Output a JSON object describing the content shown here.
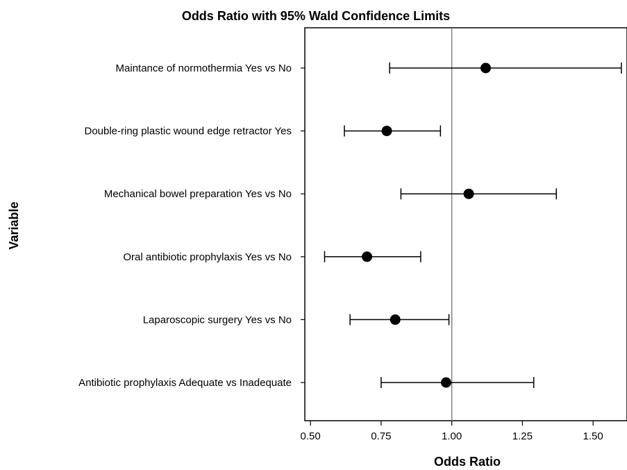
{
  "chart_data": {
    "type": "scatter",
    "title": "Odds Ratio with 95% Wald Confidence Limits",
    "xlabel": "Odds Ratio",
    "ylabel": "Variable",
    "xlim": [
      0.48,
      1.62
    ],
    "x_ticks": [
      "0.50",
      "0.75",
      "1.00",
      "1.25",
      "1.50"
    ],
    "x_tick_values": [
      0.5,
      0.75,
      1.0,
      1.25,
      1.5
    ],
    "reference_line": 1.0,
    "grid": false,
    "categories": [
      "Maintance of normothermia Yes vs No",
      "Double-ring plastic wound edge retractor  Yes",
      "Mechanical bowel preparation Yes vs No",
      "Oral antibiotic prophylaxis Yes vs No",
      "Laparoscopic surgery Yes vs No",
      "Antibiotic prophylaxis Adequate  vs Inadequate"
    ],
    "series": [
      {
        "estimate": [
          1.12,
          0.77,
          1.06,
          0.7,
          0.8,
          0.98
        ],
        "lower": [
          0.78,
          0.62,
          0.82,
          0.55,
          0.64,
          0.75
        ],
        "upper": [
          1.6,
          0.96,
          1.37,
          0.89,
          0.99,
          1.29
        ]
      }
    ],
    "colors": {
      "marker": "#000000",
      "ci": "#000000",
      "reference": "#808080",
      "axis": "#000000"
    }
  }
}
